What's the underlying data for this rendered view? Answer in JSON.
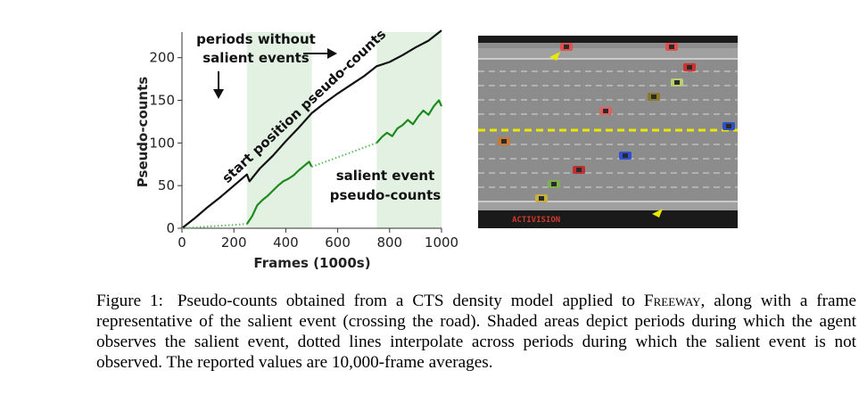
{
  "chart_data": {
    "type": "line",
    "xlabel": "Frames (1000s)",
    "ylabel": "Pseudo-counts",
    "xlim": [
      0,
      1000
    ],
    "ylim": [
      0,
      230
    ],
    "x_ticks": [
      0,
      200,
      400,
      600,
      800,
      1000
    ],
    "y_ticks": [
      0,
      50,
      100,
      150,
      200
    ],
    "shaded_regions": [
      [
        250,
        500
      ],
      [
        750,
        1000
      ]
    ],
    "series": [
      {
        "name": "start position pseudo-counts",
        "color": "#111111",
        "style": "solid",
        "x": [
          0,
          50,
          100,
          150,
          200,
          250,
          260,
          300,
          350,
          400,
          450,
          500,
          550,
          600,
          650,
          700,
          750,
          800,
          850,
          900,
          950,
          1000
        ],
        "y": [
          0,
          12,
          25,
          37,
          50,
          63,
          55,
          70,
          85,
          102,
          118,
          135,
          147,
          158,
          168,
          178,
          190,
          195,
          203,
          212,
          220,
          232
        ]
      },
      {
        "name": "salient event pseudo-counts",
        "color": "#1e8a1e",
        "style": "solid",
        "segments": [
          {
            "x": [
              250,
              270,
              290,
              310,
              330,
              350,
              370,
              390,
              410,
              430,
              450,
              470,
              490,
              500
            ],
            "y": [
              5,
              14,
              27,
              33,
              38,
              44,
              50,
              55,
              58,
              62,
              68,
              73,
              78,
              72
            ]
          },
          {
            "x": [
              750,
              770,
              790,
              810,
              830,
              850,
              870,
              890,
              910,
              930,
              950,
              970,
              990,
              1000
            ],
            "y": [
              100,
              107,
              112,
              108,
              117,
              121,
              127,
              122,
              131,
              138,
              133,
              143,
              150,
              143
            ]
          }
        ]
      },
      {
        "name": "interpolation",
        "color": "#5cb85c",
        "style": "dotted",
        "segments": [
          {
            "x": [
              0,
              250
            ],
            "y": [
              0,
              5
            ]
          },
          {
            "x": [
              500,
              750
            ],
            "y": [
              72,
              100
            ]
          }
        ]
      }
    ],
    "annotations": [
      {
        "text": "periods without"
      },
      {
        "text": "salient events"
      },
      {
        "text": "start position pseudo-counts"
      },
      {
        "text": "salient event"
      },
      {
        "text": "pseudo-counts"
      }
    ]
  },
  "game": {
    "logo_text": "ACTIVISION",
    "lane_color": "#8c8c8c",
    "median_color": "#e8e800"
  },
  "caption": {
    "label": "Figure 1:",
    "text_before": "Pseudo-counts obtained from a CTS density model applied to",
    "game_name": "Freeway",
    "text_after": ", along with a frame representative of the salient event (crossing the road). Shaded areas depict periods during which the agent observes the salient event, dotted lines interpolate across periods during which the salient event is not observed. The reported values are 10,000-frame averages."
  }
}
